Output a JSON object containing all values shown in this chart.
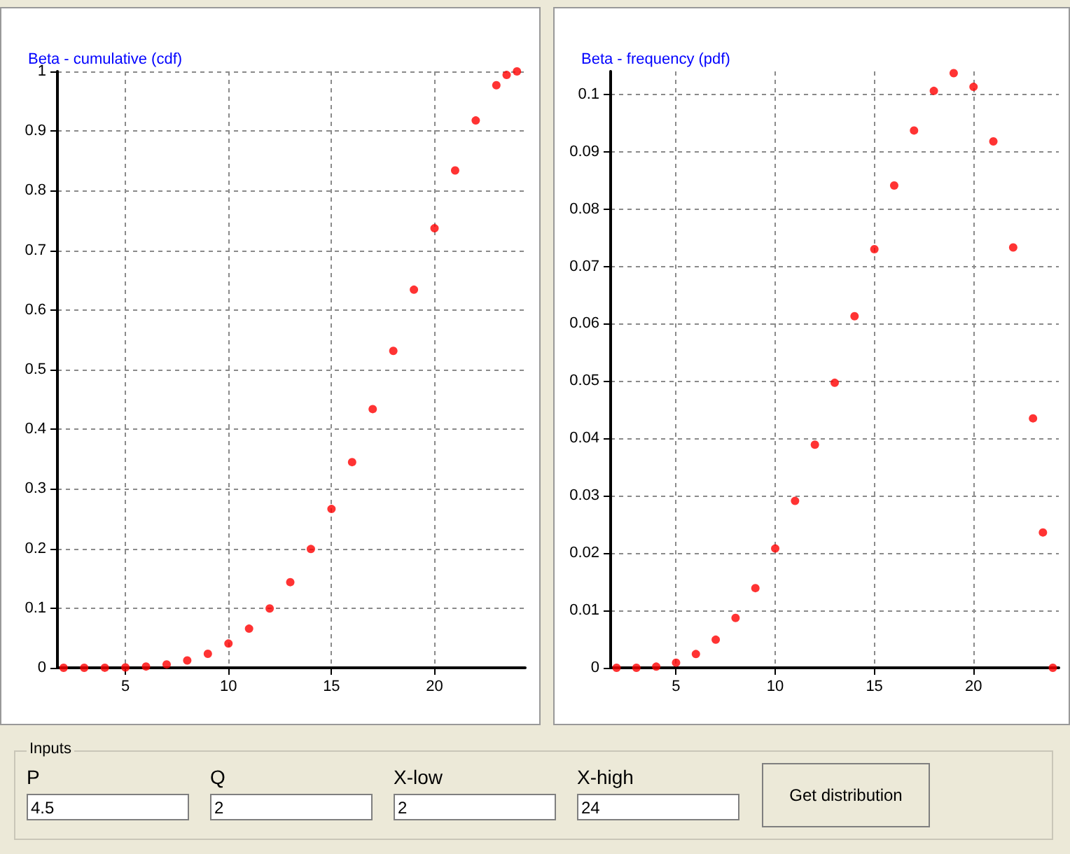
{
  "chart_data": [
    {
      "type": "scatter",
      "title": "Beta - cumulative (cdf)",
      "x": [
        2,
        3,
        4,
        5,
        6,
        7,
        8,
        9,
        10,
        11,
        12,
        13,
        14,
        15,
        16,
        17,
        18,
        19,
        20,
        21,
        22,
        23,
        23.5,
        24
      ],
      "xlim": [
        1.7,
        24.4
      ],
      "xticks": [
        5,
        10,
        15,
        20
      ],
      "ylim": [
        0,
        1
      ],
      "yticks": [
        0,
        0.1,
        0.2,
        0.3,
        0.4,
        0.5,
        0.6,
        0.7,
        0.8,
        0.9,
        1
      ],
      "grid": true,
      "marker": "circle",
      "series": [
        {
          "color": "#ff0000",
          "values": [
            0,
            0,
            0.0001,
            0.0006,
            0.0022,
            0.0057,
            0.0123,
            0.0235,
            0.0407,
            0.0656,
            0.0994,
            0.1436,
            0.1991,
            0.2663,
            0.3449,
            0.4338,
            0.5314,
            0.634,
            0.737,
            0.834,
            0.9177,
            0.9768,
            0.994,
            1
          ]
        }
      ]
    },
    {
      "type": "scatter",
      "title": "Beta - frequency (pdf)",
      "x": [
        2,
        3,
        4,
        5,
        6,
        7,
        8,
        9,
        10,
        11,
        12,
        13,
        14,
        15,
        16,
        17,
        18,
        19,
        20,
        21,
        22,
        23,
        23.5,
        24
      ],
      "xlim": [
        1.7,
        24.3
      ],
      "xticks": [
        5,
        10,
        15,
        20
      ],
      "ylim": [
        0,
        0.104
      ],
      "yticks": [
        0,
        0.01,
        0.02,
        0.03,
        0.04,
        0.05,
        0.06,
        0.07,
        0.08,
        0.09,
        0.1
      ],
      "grid": true,
      "marker": "circle",
      "series": [
        {
          "color": "#ff0000",
          "values": [
            0,
            0,
            0.0002,
            0.0009,
            0.0024,
            0.0049,
            0.0087,
            0.0139,
            0.0208,
            0.0291,
            0.0389,
            0.0497,
            0.0613,
            0.073,
            0.0841,
            0.0937,
            0.1006,
            0.1037,
            0.1013,
            0.0918,
            0.0733,
            0.0435,
            0.0236,
            0
          ]
        }
      ]
    },
    {
      "type": "other",
      "title": "Inputs",
      "annotations": [
        "P",
        "4.5",
        "Q",
        "2",
        "X-low",
        "2",
        "X-high",
        "24",
        "Get distribution"
      ]
    }
  ]
}
